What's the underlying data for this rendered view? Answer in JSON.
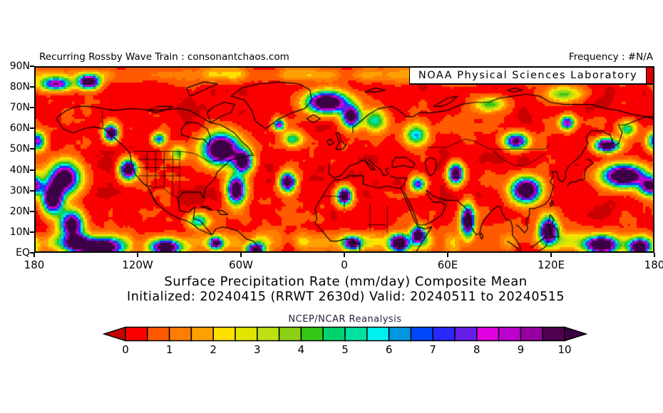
{
  "header": {
    "left": "Recurring Rossby Wave Train : consonantchaos.com",
    "right": "Frequency : #N/A"
  },
  "banner": {
    "text": "NOAA Physical Sciences Laboratory",
    "background": "#ffffff",
    "accent_color": "#dd0000"
  },
  "titles": {
    "line1": "Surface Precipitation Rate (mm/day) Composite Mean",
    "line2": "Initialized: 20240415 (RRWT 2630d) Valid: 20240511 to 20240515",
    "colorbar_label": "NCEP/NCAR Reanalysis"
  },
  "chart_data": {
    "type": "heatmap",
    "title": "Surface Precipitation Rate (mm/day) Composite Mean",
    "subtitle": "Initialized: 20240415 (RRWT 2630d) Valid: 20240511 to 20240515",
    "source_label": "NCEP/NCAR Reanalysis",
    "units": "mm/day",
    "y_axis_ticks": [
      "90N",
      "80N",
      "70N",
      "60N",
      "50N",
      "40N",
      "30N",
      "20N",
      "10N",
      "EQ"
    ],
    "x_axis_ticks": [
      "180",
      "120W",
      "60W",
      "0",
      "60E",
      "120E",
      "180"
    ],
    "lat_range_deg": [
      0,
      90
    ],
    "lon_range_deg": [
      -180,
      180
    ],
    "colorbar": {
      "tick_labels": [
        "0",
        "1",
        "2",
        "3",
        "4",
        "5",
        "6",
        "7",
        "8",
        "9",
        "10"
      ],
      "tick_values": [
        0,
        1,
        2,
        3,
        4,
        5,
        6,
        7,
        8,
        9,
        10
      ],
      "segment_width_mm_per_day": 0.5,
      "colors": [
        "#fa0000",
        "#ff5a00",
        "#ff7d00",
        "#ffa000",
        "#ffe100",
        "#e1e600",
        "#bee114",
        "#8cd214",
        "#32c814",
        "#00d26e",
        "#00e1a0",
        "#00f0f0",
        "#0096e1",
        "#0046fa",
        "#2828ff",
        "#641ee6",
        "#e100e1",
        "#be00cd",
        "#9600a0",
        "#500050"
      ],
      "under_color": "#c80000",
      "over_color": "#3c0046"
    },
    "background_field_mm_per_day": [
      0,
      1.2
    ],
    "high_precip_centers": [
      [
        -168,
        82,
        6,
        2.2,
        9
      ],
      [
        -149,
        83,
        4,
        2.2,
        13
      ],
      [
        -179,
        54,
        3,
        3,
        8
      ],
      [
        -136,
        58,
        2.6,
        2.6,
        13
      ],
      [
        -108,
        55,
        2.6,
        2,
        7
      ],
      [
        -126,
        40,
        3.2,
        3.2,
        13
      ],
      [
        -163,
        36,
        6,
        5,
        12
      ],
      [
        -170,
        26,
        4,
        5,
        13
      ],
      [
        -159,
        13,
        4.5,
        4.5,
        12
      ],
      [
        -157,
        4,
        5,
        2.6,
        12
      ],
      [
        -142,
        2,
        8,
        2.8,
        13
      ],
      [
        -104,
        2,
        6,
        2.4,
        12
      ],
      [
        -75,
        4,
        2.6,
        2,
        10
      ],
      [
        -52,
        1,
        3.5,
        2,
        11
      ],
      [
        -72,
        50,
        7,
        5,
        14
      ],
      [
        -59,
        44,
        3.5,
        3.5,
        12
      ],
      [
        -63,
        30,
        3.5,
        4.5,
        13
      ],
      [
        -38,
        62,
        2.2,
        1.8,
        9
      ],
      [
        -33,
        34,
        3,
        3,
        12
      ],
      [
        -10,
        73,
        8,
        3.5,
        14
      ],
      [
        4,
        66,
        3.5,
        3.5,
        12
      ],
      [
        0,
        27,
        2.8,
        2.8,
        13
      ],
      [
        18,
        64,
        4.5,
        3.5,
        5
      ],
      [
        42,
        57,
        4.5,
        3.5,
        6
      ],
      [
        43,
        33,
        2.8,
        2.4,
        8
      ],
      [
        5,
        4,
        3.5,
        2.2,
        11
      ],
      [
        32,
        4,
        3.5,
        2.6,
        13
      ],
      [
        43,
        8,
        2.8,
        2.8,
        12
      ],
      [
        65,
        38,
        2.8,
        3.2,
        13
      ],
      [
        72,
        15,
        2.6,
        5,
        13
      ],
      [
        100,
        54,
        4.5,
        2.6,
        10
      ],
      [
        106,
        30,
        5.5,
        4,
        14
      ],
      [
        119,
        10,
        3.5,
        4.5,
        13
      ],
      [
        150,
        3,
        6,
        2.6,
        13
      ],
      [
        172,
        2,
        4,
        2.6,
        12
      ],
      [
        163,
        37,
        8,
        3.6,
        14
      ],
      [
        178,
        32,
        4,
        3,
        10
      ],
      [
        153,
        52,
        4.5,
        2.2,
        13
      ],
      [
        130,
        63,
        2.8,
        2.2,
        9
      ],
      [
        128,
        77,
        7,
        2.6,
        4
      ],
      [
        85,
        72,
        6,
        2.4,
        4
      ],
      [
        165,
        60,
        3.5,
        2.6,
        5
      ],
      [
        -30,
        55,
        4,
        2.5,
        5
      ],
      [
        -97,
        48,
        3,
        2.5,
        4
      ],
      [
        -85,
        15,
        4,
        2.5,
        6
      ]
    ],
    "bands": {
      "itcz": {
        "center_lat": 4.5,
        "sigma_deg": 3.3,
        "amp": 3.4
      },
      "arctic": {
        "center_lat": 86.5,
        "sigma_deg": 2.6,
        "amp": 1.8
      }
    },
    "legend_position": "bottom",
    "grid": false
  }
}
